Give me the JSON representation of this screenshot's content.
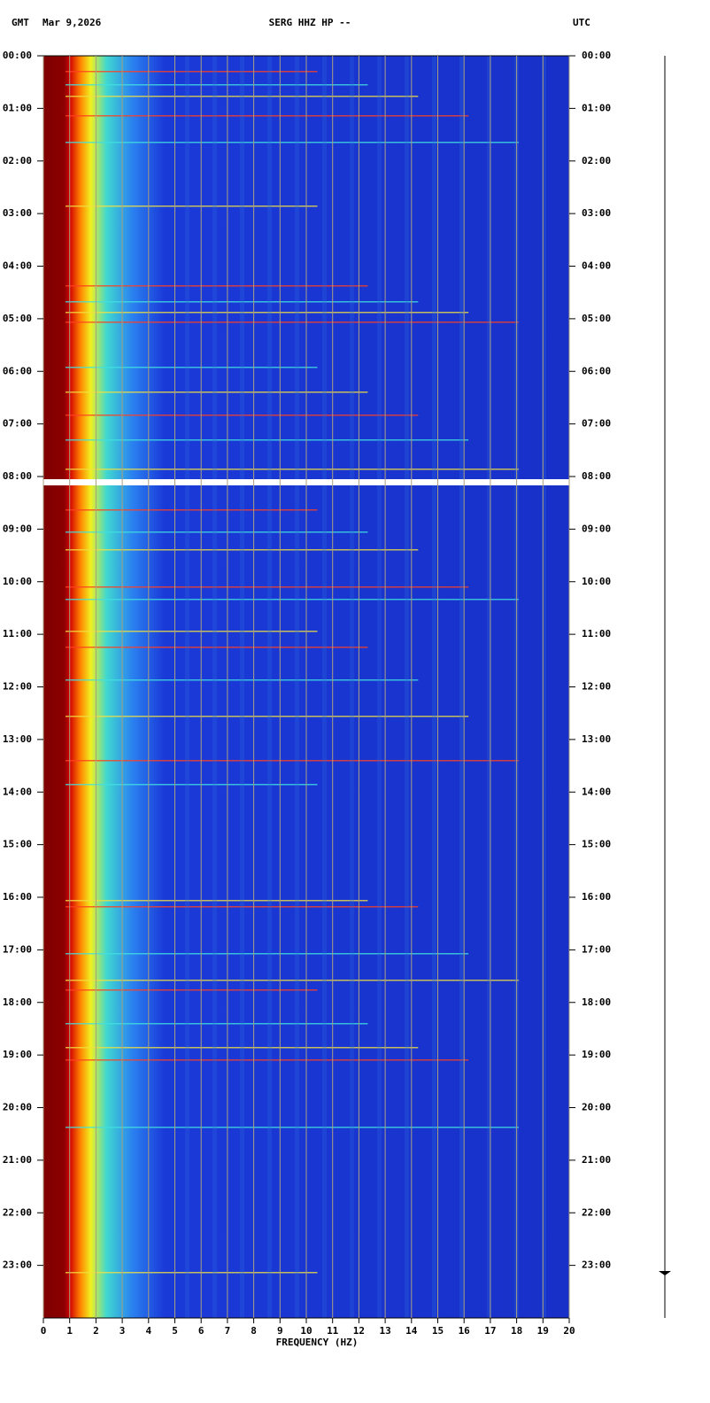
{
  "chart_data": {
    "type": "spectrogram",
    "header_left": "GMT",
    "date": "Mar 9,2026",
    "title": "SERG HHZ HP --",
    "header_right": "UTC",
    "xlabel": "FREQUENCY (HZ)",
    "xlim": [
      0,
      20
    ],
    "xticks": [
      0,
      1,
      2,
      3,
      4,
      5,
      6,
      7,
      8,
      9,
      10,
      11,
      12,
      13,
      14,
      15,
      16,
      17,
      18,
      19,
      20
    ],
    "ylim": [
      0,
      24
    ],
    "yticks": [
      {
        "value": 0,
        "label": "00:00"
      },
      {
        "value": 1,
        "label": "01:00"
      },
      {
        "value": 2,
        "label": "02:00"
      },
      {
        "value": 3,
        "label": "03:00"
      },
      {
        "value": 4,
        "label": "04:00"
      },
      {
        "value": 5,
        "label": "05:00"
      },
      {
        "value": 6,
        "label": "06:00"
      },
      {
        "value": 7,
        "label": "07:00"
      },
      {
        "value": 8,
        "label": "08:00"
      },
      {
        "value": 9,
        "label": "09:00"
      },
      {
        "value": 10,
        "label": "10:00"
      },
      {
        "value": 11,
        "label": "11:00"
      },
      {
        "value": 12,
        "label": "12:00"
      },
      {
        "value": 13,
        "label": "13:00"
      },
      {
        "value": 14,
        "label": "14:00"
      },
      {
        "value": 15,
        "label": "15:00"
      },
      {
        "value": 16,
        "label": "16:00"
      },
      {
        "value": 17,
        "label": "17:00"
      },
      {
        "value": 18,
        "label": "18:00"
      },
      {
        "value": 19,
        "label": "19:00"
      },
      {
        "value": 20,
        "label": "20:00"
      },
      {
        "value": 21,
        "label": "21:00"
      },
      {
        "value": 22,
        "label": "22:00"
      },
      {
        "value": 23,
        "label": "23:00"
      }
    ],
    "grid": true,
    "grid_color": "#a8a080"
  }
}
